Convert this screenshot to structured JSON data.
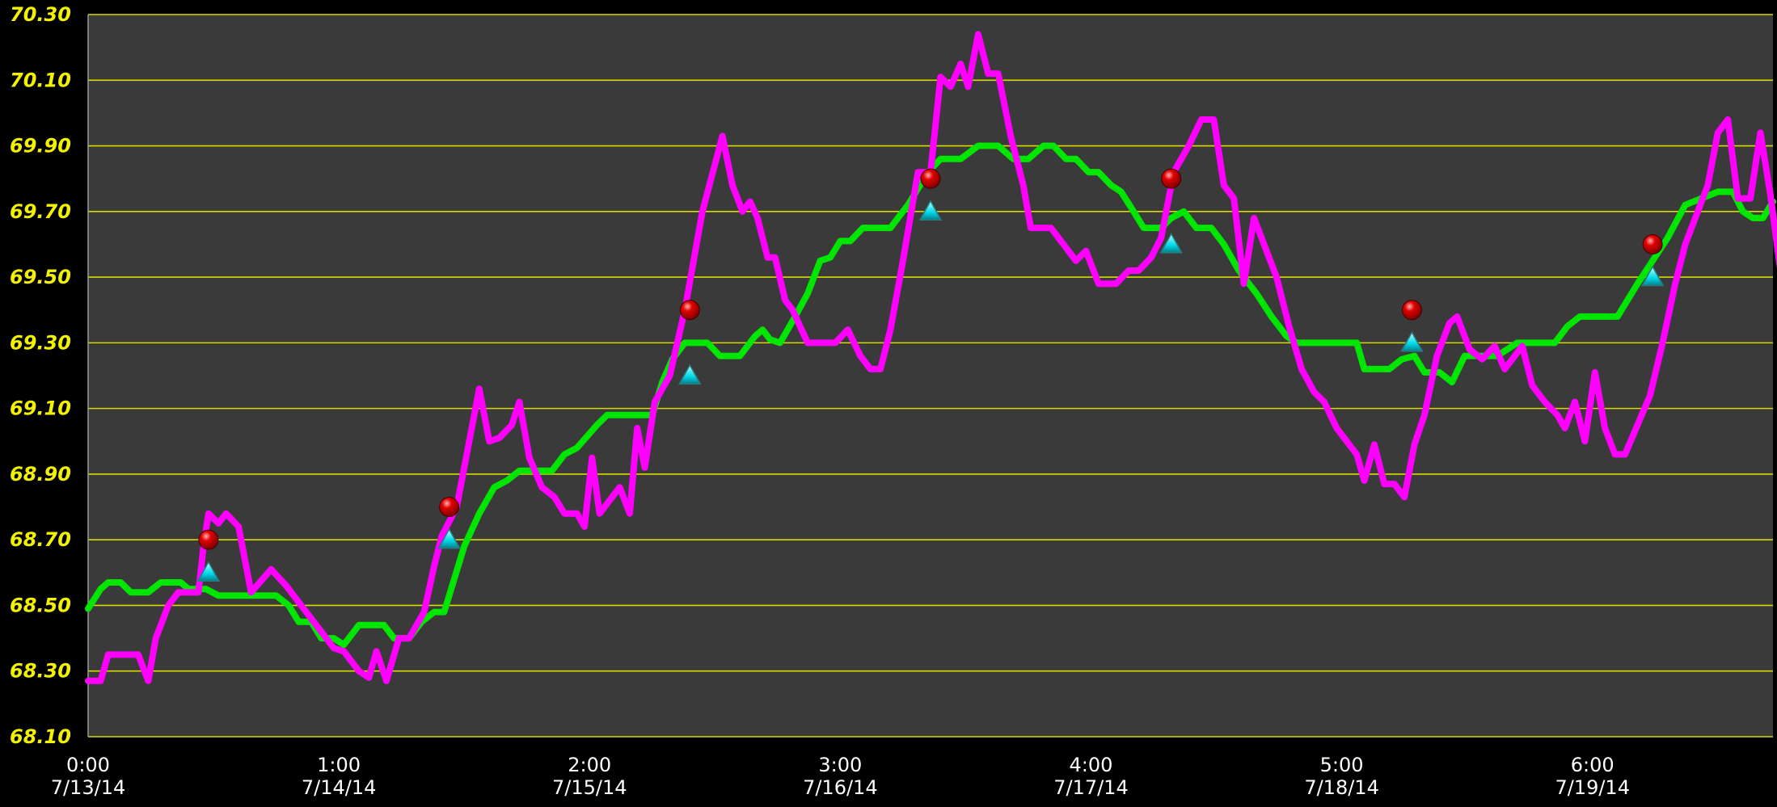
{
  "chart_data": {
    "type": "line",
    "colors": {
      "background": "#000000",
      "plot_background": "#3a3a3a",
      "grid": "#d8d800",
      "y_tick_text": "#f2f200",
      "x_tick_text": "#ffffff",
      "green_series": "#00e600",
      "magenta_series": "#ff00ff",
      "marker_circle": "#e00000",
      "marker_triangle": "#00d8e8"
    },
    "grid": true,
    "y_axis": {
      "ylim": [
        68.1,
        70.3
      ],
      "ticks": [
        "68.10",
        "68.30",
        "68.50",
        "68.70",
        "68.90",
        "69.10",
        "69.30",
        "69.50",
        "69.70",
        "69.90",
        "70.10",
        "70.30"
      ]
    },
    "x_axis": {
      "xlim": [
        0,
        6.72
      ],
      "ticks": [
        {
          "time": "0:00",
          "date": "7/13/14",
          "x": 0
        },
        {
          "time": "1:00",
          "date": "7/14/14",
          "x": 1
        },
        {
          "time": "2:00",
          "date": "7/15/14",
          "x": 2
        },
        {
          "time": "3:00",
          "date": "7/16/14",
          "x": 3
        },
        {
          "time": "4:00",
          "date": "7/17/14",
          "x": 4
        },
        {
          "time": "5:00",
          "date": "7/18/14",
          "x": 5
        },
        {
          "time": "6:00",
          "date": "7/19/14",
          "x": 6
        }
      ]
    },
    "series": [
      {
        "color_key": "green_series",
        "points": [
          [
            0.0,
            68.49
          ],
          [
            0.05,
            68.55
          ],
          [
            0.08,
            68.57
          ],
          [
            0.13,
            68.57
          ],
          [
            0.17,
            68.54
          ],
          [
            0.24,
            68.54
          ],
          [
            0.29,
            68.57
          ],
          [
            0.37,
            68.57
          ],
          [
            0.4,
            68.55
          ],
          [
            0.47,
            68.55
          ],
          [
            0.52,
            68.53
          ],
          [
            0.75,
            68.53
          ],
          [
            0.8,
            68.5
          ],
          [
            0.84,
            68.45
          ],
          [
            0.89,
            68.45
          ],
          [
            0.93,
            68.4
          ],
          [
            0.98,
            68.4
          ],
          [
            1.02,
            68.38
          ],
          [
            1.08,
            68.44
          ],
          [
            1.18,
            68.44
          ],
          [
            1.22,
            68.4
          ],
          [
            1.28,
            68.4
          ],
          [
            1.33,
            68.45
          ],
          [
            1.38,
            68.48
          ],
          [
            1.42,
            68.48
          ],
          [
            1.46,
            68.58
          ],
          [
            1.5,
            68.68
          ],
          [
            1.56,
            68.78
          ],
          [
            1.62,
            68.86
          ],
          [
            1.67,
            68.88
          ],
          [
            1.72,
            68.91
          ],
          [
            1.85,
            68.91
          ],
          [
            1.9,
            68.96
          ],
          [
            1.95,
            68.98
          ],
          [
            2.03,
            69.05
          ],
          [
            2.07,
            69.08
          ],
          [
            2.25,
            69.08
          ],
          [
            2.29,
            69.18
          ],
          [
            2.33,
            69.25
          ],
          [
            2.38,
            69.3
          ],
          [
            2.47,
            69.3
          ],
          [
            2.52,
            69.26
          ],
          [
            2.6,
            69.26
          ],
          [
            2.66,
            69.32
          ],
          [
            2.69,
            69.34
          ],
          [
            2.72,
            69.31
          ],
          [
            2.76,
            69.3
          ],
          [
            2.82,
            69.38
          ],
          [
            2.87,
            69.45
          ],
          [
            2.92,
            69.55
          ],
          [
            2.96,
            69.56
          ],
          [
            3.0,
            69.61
          ],
          [
            3.04,
            69.61
          ],
          [
            3.09,
            69.65
          ],
          [
            3.2,
            69.65
          ],
          [
            3.27,
            69.72
          ],
          [
            3.35,
            69.82
          ],
          [
            3.4,
            69.86
          ],
          [
            3.48,
            69.86
          ],
          [
            3.55,
            69.9
          ],
          [
            3.63,
            69.9
          ],
          [
            3.69,
            69.86
          ],
          [
            3.75,
            69.86
          ],
          [
            3.81,
            69.9
          ],
          [
            3.85,
            69.9
          ],
          [
            3.9,
            69.86
          ],
          [
            3.94,
            69.86
          ],
          [
            3.99,
            69.82
          ],
          [
            4.03,
            69.82
          ],
          [
            4.08,
            69.78
          ],
          [
            4.12,
            69.76
          ],
          [
            4.17,
            69.7
          ],
          [
            4.21,
            69.65
          ],
          [
            4.28,
            69.65
          ],
          [
            4.32,
            69.68
          ],
          [
            4.37,
            69.7
          ],
          [
            4.42,
            69.65
          ],
          [
            4.48,
            69.65
          ],
          [
            4.53,
            69.6
          ],
          [
            4.59,
            69.52
          ],
          [
            4.66,
            69.45
          ],
          [
            4.72,
            69.38
          ],
          [
            4.78,
            69.32
          ],
          [
            4.82,
            69.3
          ],
          [
            5.06,
            69.3
          ],
          [
            5.09,
            69.22
          ],
          [
            5.19,
            69.22
          ],
          [
            5.24,
            69.25
          ],
          [
            5.29,
            69.26
          ],
          [
            5.33,
            69.21
          ],
          [
            5.39,
            69.21
          ],
          [
            5.44,
            69.18
          ],
          [
            5.49,
            69.26
          ],
          [
            5.62,
            69.26
          ],
          [
            5.7,
            69.3
          ],
          [
            5.85,
            69.3
          ],
          [
            5.9,
            69.35
          ],
          [
            5.95,
            69.38
          ],
          [
            6.1,
            69.38
          ],
          [
            6.18,
            69.48
          ],
          [
            6.3,
            69.62
          ],
          [
            6.37,
            69.72
          ],
          [
            6.5,
            69.76
          ],
          [
            6.56,
            69.76
          ],
          [
            6.6,
            69.7
          ],
          [
            6.64,
            69.68
          ],
          [
            6.68,
            69.68
          ],
          [
            6.72,
            69.73
          ]
        ]
      },
      {
        "color_key": "magenta_series",
        "points": [
          [
            0.0,
            68.27
          ],
          [
            0.05,
            68.27
          ],
          [
            0.08,
            68.35
          ],
          [
            0.2,
            68.35
          ],
          [
            0.24,
            68.27
          ],
          [
            0.27,
            68.4
          ],
          [
            0.32,
            68.5
          ],
          [
            0.36,
            68.54
          ],
          [
            0.44,
            68.54
          ],
          [
            0.46,
            68.68
          ],
          [
            0.48,
            68.78
          ],
          [
            0.52,
            68.75
          ],
          [
            0.55,
            68.78
          ],
          [
            0.6,
            68.74
          ],
          [
            0.65,
            68.54
          ],
          [
            0.73,
            68.61
          ],
          [
            0.79,
            68.56
          ],
          [
            0.85,
            68.5
          ],
          [
            0.92,
            68.43
          ],
          [
            0.98,
            68.37
          ],
          [
            1.02,
            68.36
          ],
          [
            1.08,
            68.3
          ],
          [
            1.12,
            68.28
          ],
          [
            1.15,
            68.36
          ],
          [
            1.19,
            68.27
          ],
          [
            1.24,
            68.4
          ],
          [
            1.28,
            68.4
          ],
          [
            1.34,
            68.48
          ],
          [
            1.38,
            68.62
          ],
          [
            1.41,
            68.71
          ],
          [
            1.47,
            68.8
          ],
          [
            1.52,
            69.0
          ],
          [
            1.56,
            69.16
          ],
          [
            1.6,
            69.0
          ],
          [
            1.64,
            69.01
          ],
          [
            1.69,
            69.05
          ],
          [
            1.72,
            69.12
          ],
          [
            1.76,
            68.95
          ],
          [
            1.81,
            68.86
          ],
          [
            1.86,
            68.83
          ],
          [
            1.9,
            68.78
          ],
          [
            1.95,
            68.78
          ],
          [
            1.98,
            68.74
          ],
          [
            2.01,
            68.95
          ],
          [
            2.04,
            68.78
          ],
          [
            2.12,
            68.86
          ],
          [
            2.16,
            68.78
          ],
          [
            2.19,
            69.04
          ],
          [
            2.22,
            68.92
          ],
          [
            2.26,
            69.12
          ],
          [
            2.32,
            69.2
          ],
          [
            2.38,
            69.4
          ],
          [
            2.45,
            69.7
          ],
          [
            2.53,
            69.93
          ],
          [
            2.57,
            69.78
          ],
          [
            2.61,
            69.7
          ],
          [
            2.64,
            69.73
          ],
          [
            2.67,
            69.68
          ],
          [
            2.71,
            69.56
          ],
          [
            2.74,
            69.56
          ],
          [
            2.78,
            69.43
          ],
          [
            2.81,
            69.4
          ],
          [
            2.87,
            69.3
          ],
          [
            2.93,
            69.3
          ],
          [
            2.98,
            69.3
          ],
          [
            3.03,
            69.34
          ],
          [
            3.08,
            69.26
          ],
          [
            3.12,
            69.22
          ],
          [
            3.16,
            69.22
          ],
          [
            3.2,
            69.34
          ],
          [
            3.25,
            69.55
          ],
          [
            3.31,
            69.82
          ],
          [
            3.36,
            69.82
          ],
          [
            3.4,
            70.11
          ],
          [
            3.44,
            70.08
          ],
          [
            3.48,
            70.15
          ],
          [
            3.51,
            70.08
          ],
          [
            3.55,
            70.24
          ],
          [
            3.59,
            70.12
          ],
          [
            3.63,
            70.12
          ],
          [
            3.68,
            69.93
          ],
          [
            3.73,
            69.78
          ],
          [
            3.76,
            69.65
          ],
          [
            3.84,
            69.65
          ],
          [
            3.89,
            69.6
          ],
          [
            3.94,
            69.55
          ],
          [
            3.98,
            69.58
          ],
          [
            4.03,
            69.48
          ],
          [
            4.1,
            69.48
          ],
          [
            4.15,
            69.52
          ],
          [
            4.19,
            69.52
          ],
          [
            4.24,
            69.56
          ],
          [
            4.28,
            69.62
          ],
          [
            4.33,
            69.82
          ],
          [
            4.39,
            69.9
          ],
          [
            4.44,
            69.98
          ],
          [
            4.49,
            69.98
          ],
          [
            4.53,
            69.78
          ],
          [
            4.57,
            69.74
          ],
          [
            4.61,
            69.48
          ],
          [
            4.65,
            69.68
          ],
          [
            4.69,
            69.6
          ],
          [
            4.74,
            69.5
          ],
          [
            4.79,
            69.35
          ],
          [
            4.84,
            69.22
          ],
          [
            4.89,
            69.15
          ],
          [
            4.93,
            69.12
          ],
          [
            4.98,
            69.04
          ],
          [
            5.02,
            69.0
          ],
          [
            5.06,
            68.96
          ],
          [
            5.09,
            68.88
          ],
          [
            5.13,
            68.99
          ],
          [
            5.17,
            68.87
          ],
          [
            5.21,
            68.87
          ],
          [
            5.25,
            68.83
          ],
          [
            5.29,
            68.99
          ],
          [
            5.33,
            69.08
          ],
          [
            5.38,
            69.26
          ],
          [
            5.43,
            69.36
          ],
          [
            5.46,
            69.38
          ],
          [
            5.51,
            69.28
          ],
          [
            5.56,
            69.25
          ],
          [
            5.61,
            69.29
          ],
          [
            5.65,
            69.22
          ],
          [
            5.72,
            69.29
          ],
          [
            5.76,
            69.17
          ],
          [
            5.81,
            69.12
          ],
          [
            5.86,
            69.08
          ],
          [
            5.89,
            69.04
          ],
          [
            5.93,
            69.12
          ],
          [
            5.97,
            69.0
          ],
          [
            6.01,
            69.21
          ],
          [
            6.05,
            69.04
          ],
          [
            6.09,
            68.96
          ],
          [
            6.13,
            68.96
          ],
          [
            6.18,
            69.05
          ],
          [
            6.23,
            69.14
          ],
          [
            6.28,
            69.3
          ],
          [
            6.33,
            69.48
          ],
          [
            6.37,
            69.6
          ],
          [
            6.42,
            69.7
          ],
          [
            6.46,
            69.78
          ],
          [
            6.5,
            69.94
          ],
          [
            6.54,
            69.98
          ],
          [
            6.58,
            69.74
          ],
          [
            6.63,
            69.74
          ],
          [
            6.67,
            69.94
          ],
          [
            6.71,
            69.75
          ],
          [
            6.75,
            69.52
          ],
          [
            6.79,
            69.64
          ],
          [
            6.84,
            69.55
          ],
          [
            6.88,
            69.52
          ]
        ]
      }
    ],
    "markers": [
      {
        "shape": "circle",
        "color_key": "marker_circle",
        "x": 0.48,
        "y": 68.7
      },
      {
        "shape": "triangle",
        "color_key": "marker_triangle",
        "x": 0.48,
        "y": 68.6
      },
      {
        "shape": "circle",
        "color_key": "marker_circle",
        "x": 1.44,
        "y": 68.8
      },
      {
        "shape": "triangle",
        "color_key": "marker_triangle",
        "x": 1.44,
        "y": 68.7
      },
      {
        "shape": "circle",
        "color_key": "marker_circle",
        "x": 2.4,
        "y": 69.4
      },
      {
        "shape": "triangle",
        "color_key": "marker_triangle",
        "x": 2.4,
        "y": 69.2
      },
      {
        "shape": "circle",
        "color_key": "marker_circle",
        "x": 3.36,
        "y": 69.8
      },
      {
        "shape": "triangle",
        "color_key": "marker_triangle",
        "x": 3.36,
        "y": 69.7
      },
      {
        "shape": "circle",
        "color_key": "marker_circle",
        "x": 4.32,
        "y": 69.8
      },
      {
        "shape": "triangle",
        "color_key": "marker_triangle",
        "x": 4.32,
        "y": 69.6
      },
      {
        "shape": "circle",
        "color_key": "marker_circle",
        "x": 5.28,
        "y": 69.4
      },
      {
        "shape": "triangle",
        "color_key": "marker_triangle",
        "x": 5.28,
        "y": 69.3
      },
      {
        "shape": "circle",
        "color_key": "marker_circle",
        "x": 6.24,
        "y": 69.6
      },
      {
        "shape": "triangle",
        "color_key": "marker_triangle",
        "x": 6.24,
        "y": 69.5
      }
    ]
  }
}
